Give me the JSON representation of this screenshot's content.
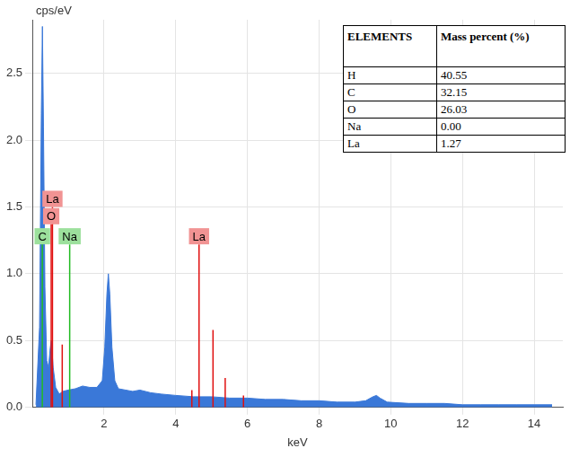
{
  "chart_data": {
    "type": "area",
    "y_label": "cps/eV",
    "x_label": "keV",
    "color": "#3a78d8",
    "grid": true,
    "x": [
      0.1,
      0.2,
      0.25,
      0.28,
      0.31,
      0.35,
      0.4,
      0.45,
      0.5,
      0.53,
      0.58,
      0.65,
      0.75,
      0.85,
      1.0,
      1.2,
      1.4,
      1.6,
      1.8,
      1.95,
      2.02,
      2.08,
      2.12,
      2.16,
      2.22,
      2.3,
      2.4,
      2.6,
      2.8,
      3.0,
      3.3,
      3.6,
      4.0,
      4.5,
      5.0,
      5.5,
      6.0,
      6.5,
      7.0,
      7.5,
      8.0,
      8.5,
      9.0,
      9.3,
      9.5,
      9.6,
      9.7,
      9.9,
      10.5,
      11.0,
      11.5,
      12.0,
      12.5,
      13.0,
      13.5,
      14.0,
      14.5
    ],
    "values": [
      0.02,
      0.6,
      2.2,
      2.85,
      2.1,
      0.9,
      0.35,
      0.3,
      0.45,
      0.5,
      0.3,
      0.15,
      0.1,
      0.12,
      0.13,
      0.14,
      0.16,
      0.15,
      0.15,
      0.2,
      0.45,
      0.85,
      1.0,
      0.85,
      0.45,
      0.2,
      0.14,
      0.13,
      0.12,
      0.13,
      0.11,
      0.1,
      0.09,
      0.08,
      0.08,
      0.07,
      0.07,
      0.06,
      0.06,
      0.05,
      0.05,
      0.04,
      0.04,
      0.05,
      0.08,
      0.09,
      0.07,
      0.04,
      0.03,
      0.03,
      0.03,
      0.02,
      0.02,
      0.02,
      0.02,
      0.02,
      0.02
    ],
    "xlim": [
      0,
      14.8
    ],
    "xticks": [
      2,
      4,
      6,
      8,
      10,
      12,
      14
    ],
    "ylim": [
      0,
      2.9
    ],
    "yticks": [
      {
        "value": 0,
        "label": "0.0"
      },
      {
        "value": 0.5,
        "label": "0.5"
      },
      {
        "value": 1,
        "label": "1.0"
      },
      {
        "value": 1.5,
        "label": "1.5"
      },
      {
        "value": 2,
        "label": "2.0"
      },
      {
        "value": 2.5,
        "label": "2.5"
      }
    ],
    "element_lines": [
      {
        "label": "C",
        "x": 0.277,
        "height": 1.22,
        "color": "#22bb22"
      },
      {
        "label": "O",
        "x": 0.525,
        "height": 1.37,
        "color": "#e01010"
      },
      {
        "label": "La",
        "x": 0.56,
        "height": 1.5,
        "color": "#e01010"
      },
      {
        "x": 0.833,
        "height": 0.47,
        "color": "#e01010"
      },
      {
        "label": "Na",
        "x": 1.041,
        "height": 1.22,
        "color": "#22bb22"
      },
      {
        "x": 4.45,
        "height": 0.13,
        "color": "#e01010"
      },
      {
        "label": "La",
        "x": 4.65,
        "height": 1.22,
        "color": "#e01010"
      },
      {
        "x": 5.04,
        "height": 0.58,
        "color": "#e01010"
      },
      {
        "x": 5.38,
        "height": 0.22,
        "color": "#e01010"
      },
      {
        "x": 5.89,
        "height": 0.09,
        "color": "#e01010"
      }
    ]
  },
  "table": {
    "header": [
      "ELEMENTS",
      "Mass percent (%)"
    ],
    "rows": [
      [
        "H",
        "40.55"
      ],
      [
        "C",
        "32.15"
      ],
      [
        "O",
        "26.03"
      ],
      [
        "Na",
        "0.00"
      ],
      [
        "La",
        "1.27"
      ]
    ]
  }
}
